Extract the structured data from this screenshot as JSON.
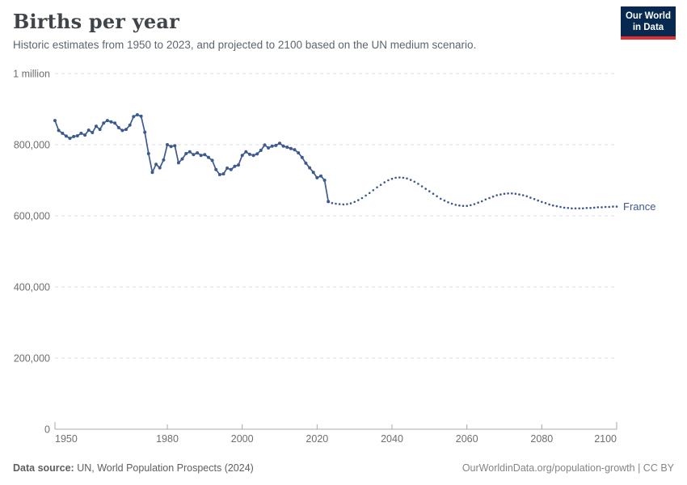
{
  "header": {
    "title": "Births per year",
    "subtitle": "Historic estimates from 1950 to 2023, and projected to 2100 based on the UN medium scenario.",
    "logo": {
      "line1": "Our World",
      "line2": "in Data",
      "bg_color": "#08294f",
      "accent_color": "#e02e33"
    }
  },
  "chart_data": {
    "type": "line",
    "title": "Births per year",
    "xlabel": "",
    "ylabel": "",
    "xlim": [
      1950,
      2100
    ],
    "ylim": [
      0,
      1000000
    ],
    "grid": "horizontal-dashed",
    "legend_position": "end-of-line",
    "xticks": [
      1950,
      1980,
      2000,
      2020,
      2040,
      2060,
      2080,
      2100
    ],
    "yticks": [
      {
        "value": 0,
        "label": "0"
      },
      {
        "value": 200000,
        "label": "200,000"
      },
      {
        "value": 400000,
        "label": "400,000"
      },
      {
        "value": 600000,
        "label": "600,000"
      },
      {
        "value": 800000,
        "label": "800,000"
      },
      {
        "value": 1000000,
        "label": "1 million"
      }
    ],
    "end_label": "France",
    "line_color": "#3d5a8f",
    "axis_color": "#a8a8a8",
    "grid_color": "#dedede",
    "tick_text_color": "#6e6e6e",
    "series": [
      {
        "name": "France (historic estimates)",
        "style": "solid-with-markers",
        "color": "#3d5a8f",
        "start_year": 1950,
        "values": [
          868000,
          840000,
          832000,
          824000,
          818000,
          823000,
          825000,
          832000,
          827000,
          841000,
          834000,
          852000,
          843000,
          861000,
          868000,
          864000,
          861000,
          848000,
          840000,
          843000,
          855000,
          879000,
          884000,
          880000,
          835000,
          775000,
          722000,
          745000,
          735000,
          757000,
          800000,
          795000,
          797000,
          749000,
          760000,
          775000,
          780000,
          772000,
          777000,
          770000,
          772000,
          764000,
          756000,
          730000,
          716000,
          718000,
          734000,
          730000,
          739000,
          743000,
          770000,
          780000,
          773000,
          770000,
          774000,
          784000,
          799000,
          791000,
          796000,
          798000,
          804000,
          796000,
          793000,
          789000,
          786000,
          777000,
          764000,
          748000,
          735000,
          722000,
          707000,
          712000,
          700000,
          640000
        ]
      },
      {
        "name": "France (UN medium projection)",
        "style": "dotted",
        "color": "#3d5a8f",
        "start_year": 2024,
        "values": [
          636000,
          634000,
          633000,
          632000,
          633000,
          635000,
          639000,
          644000,
          650000,
          657000,
          664000,
          672000,
          680000,
          687000,
          694000,
          700000,
          704000,
          707000,
          708000,
          707000,
          705000,
          701000,
          696000,
          690000,
          683000,
          676000,
          669000,
          662000,
          655000,
          648000,
          643000,
          638000,
          634000,
          631000,
          629000,
          628000,
          628000,
          630000,
          633000,
          637000,
          641000,
          646000,
          650000,
          654000,
          658000,
          660000,
          662000,
          663000,
          663000,
          662000,
          660000,
          658000,
          655000,
          651000,
          647000,
          643000,
          639000,
          636000,
          632000,
          629000,
          627000,
          625000,
          623000,
          622000,
          621000,
          621000,
          621000,
          621000,
          622000,
          622000,
          623000,
          624000,
          624000,
          625000,
          625000,
          626000,
          626000
        ]
      }
    ]
  },
  "footer": {
    "source_label": "Data source:",
    "source_value": " UN, World Population Prospects (2024)",
    "credit": "OurWorldinData.org/population-growth | CC BY"
  }
}
